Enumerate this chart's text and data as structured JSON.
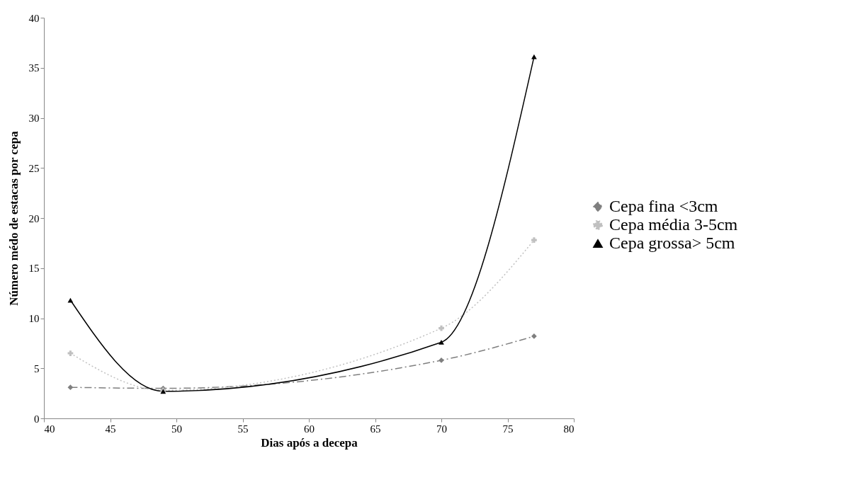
{
  "chart_data": {
    "type": "line",
    "xlabel": "Dias após a decepa",
    "ylabel": "Número médo de estacas por cepa",
    "x": [
      42,
      49,
      70,
      77
    ],
    "xlim": [
      40,
      80
    ],
    "xticks": [
      40,
      45,
      50,
      55,
      60,
      65,
      70,
      75,
      80
    ],
    "ylim": [
      0,
      40
    ],
    "yticks": [
      0,
      5,
      10,
      15,
      20,
      25,
      30,
      35,
      40
    ],
    "legend": "right",
    "series": [
      {
        "name": "Cepa fina <3cm",
        "color": "#7f7f7f",
        "marker": "diamond",
        "line_style": "dashed",
        "values": [
          3.1,
          3.0,
          5.8,
          8.2
        ]
      },
      {
        "name": "Cepa média 3-5cm",
        "color": "#c0c0c0",
        "marker": "cross",
        "line_style": "dotted",
        "values": [
          6.5,
          2.8,
          9.0,
          17.8
        ]
      },
      {
        "name": "Cepa grossa> 5cm",
        "color": "#000000",
        "marker": "triangle",
        "line_style": "solid",
        "values": [
          11.8,
          2.7,
          7.6,
          36.1
        ]
      }
    ]
  }
}
